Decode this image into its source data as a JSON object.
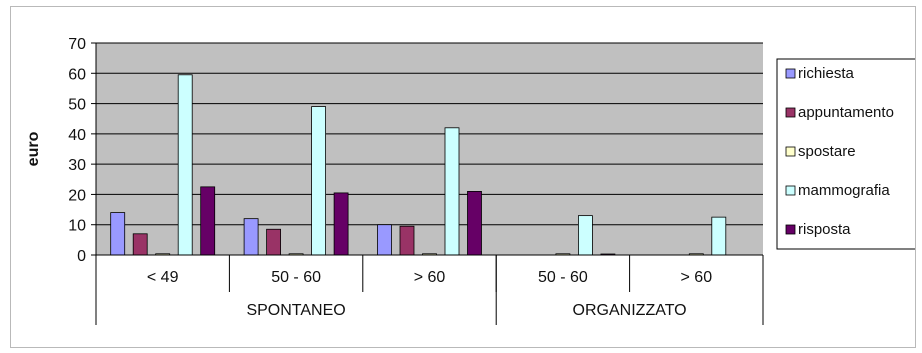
{
  "chart_data": {
    "type": "bar",
    "ylabel": "euro",
    "ylim": [
      0,
      70
    ],
    "yticks": [
      0,
      10,
      20,
      30,
      40,
      50,
      60,
      70
    ],
    "grid": true,
    "legend_position": "right",
    "categories": [
      "< 49",
      "50 - 60",
      "> 60",
      "50 - 60",
      "> 60"
    ],
    "groups": [
      {
        "label": "SPONTANEO",
        "categories": [
          "< 49",
          "50 - 60",
          "> 60"
        ]
      },
      {
        "label": "ORGANIZZATO",
        "categories": [
          "50 - 60",
          "> 60"
        ]
      }
    ],
    "series": [
      {
        "name": "richiesta",
        "color": "#9999ff",
        "values": [
          14,
          12,
          10,
          0,
          0
        ]
      },
      {
        "name": "appuntamento",
        "color": "#993366",
        "values": [
          7,
          8.5,
          9.5,
          0,
          0
        ]
      },
      {
        "name": "spostare",
        "color": "#ffffcc",
        "values": [
          0.4,
          0.4,
          0.4,
          0.4,
          0.4
        ]
      },
      {
        "name": "mammografia",
        "color": "#ccffff",
        "values": [
          59.5,
          49,
          42,
          13,
          12.5
        ]
      },
      {
        "name": "risposta",
        "color": "#660066",
        "values": [
          22.5,
          20.5,
          21,
          0.3,
          0
        ]
      }
    ]
  }
}
